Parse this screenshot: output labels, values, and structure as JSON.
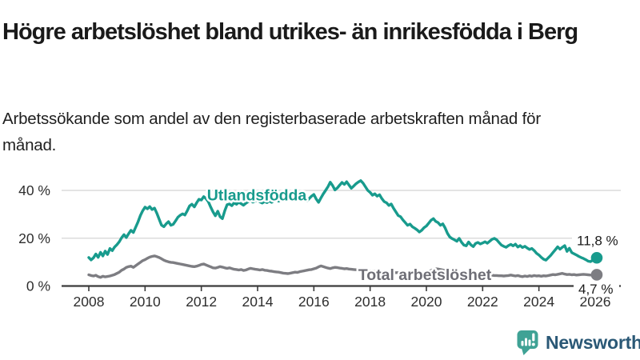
{
  "header": {
    "title": "Högre arbetslöshet bland utrikes- än inrikesfödda i Berg",
    "subtitle": "Arbetssökande som andel av den registerbaserade arbetskraften månad för månad."
  },
  "chart_data": {
    "type": "line",
    "title": "Högre arbetslöshet bland utrikes- än inrikesfödda i Berg",
    "x_axis": {
      "start_year": 2008,
      "end_year": 2026,
      "tick_years": [
        2008,
        2010,
        2012,
        2014,
        2016,
        2018,
        2020,
        2022,
        2024,
        2026
      ],
      "resolution": "monthly"
    },
    "y_axis": {
      "ylim": [
        0,
        48
      ],
      "ticks": [
        {
          "value": 0,
          "label": "0 %"
        },
        {
          "value": 20,
          "label": "20 %"
        },
        {
          "value": 40,
          "label": "40 %"
        }
      ],
      "grid": true
    },
    "colors": {
      "axis": "#3a3a3a",
      "grid": "#dcdcdc",
      "tick_text": "#2e2e2e",
      "end_label_text": "#1a1a1a"
    },
    "series": [
      {
        "name": "Utlandsfödda",
        "color": "#189b8d",
        "end_label": "11,8 %",
        "end_value": 11.8,
        "monthly_values": [
          11.9,
          10.9,
          11.8,
          13.4,
          12.0,
          14.1,
          12.6,
          14.6,
          13.2,
          15.7,
          14.8,
          16.3,
          17.3,
          18.5,
          20.2,
          21.5,
          20.3,
          21.9,
          23.3,
          22.4,
          24.6,
          26.8,
          29.5,
          31.5,
          33.0,
          32.3,
          33.2,
          32.0,
          32.6,
          30.5,
          28.0,
          25.5,
          24.8,
          26.0,
          26.9,
          25.4,
          25.8,
          27.2,
          28.8,
          29.6,
          30.2,
          29.7,
          31.5,
          33.5,
          34.2,
          33.1,
          34.8,
          36.3,
          36.0,
          37.4,
          36.6,
          35.2,
          33.0,
          31.0,
          29.4,
          31.3,
          29.0,
          28.2,
          31.5,
          34.0,
          34.3,
          33.6,
          34.8,
          34.2,
          35.0,
          34.4,
          33.8,
          34.6,
          35.3,
          35.8,
          35.1,
          35.6,
          35.9,
          35.2,
          34.7,
          35.4,
          34.9,
          35.6,
          35.0,
          35.7,
          36.2,
          35.5,
          36.0,
          36.5,
          36.9,
          36.2,
          36.7,
          37.3,
          36.8,
          37.4,
          38.0,
          37.2,
          36.4,
          35.6,
          36.6,
          37.6,
          38.3,
          36.4,
          35.0,
          36.8,
          38.5,
          40.0,
          41.5,
          43.4,
          42.0,
          40.2,
          41.0,
          42.2,
          43.3,
          42.5,
          43.6,
          42.2,
          40.9,
          41.8,
          42.8,
          43.5,
          44.1,
          43.0,
          41.5,
          40.0,
          39.2,
          38.0,
          38.6,
          37.6,
          38.2,
          36.6,
          35.3,
          34.8,
          33.7,
          34.3,
          32.5,
          31.0,
          29.5,
          29.0,
          27.6,
          26.5,
          25.4,
          25.9,
          24.8,
          24.2,
          23.5,
          22.6,
          23.3,
          24.4,
          25.1,
          26.3,
          27.5,
          28.2,
          27.0,
          26.5,
          25.4,
          26.0,
          24.3,
          22.0,
          20.5,
          19.8,
          19.3,
          18.7,
          19.9,
          18.3,
          17.1,
          16.8,
          18.4,
          17.2,
          16.5,
          17.8,
          18.2,
          17.6,
          18.0,
          18.5,
          17.9,
          18.7,
          19.5,
          19.9,
          19.3,
          18.2,
          17.1,
          16.6,
          16.2,
          16.9,
          17.4,
          16.8,
          17.5,
          16.3,
          16.9,
          16.1,
          16.6,
          15.9,
          15.3,
          15.7,
          14.8,
          13.7,
          13.0,
          12.0,
          11.2,
          10.8,
          11.8,
          12.8,
          14.0,
          15.2,
          16.4,
          15.4,
          16.2,
          16.9,
          14.5,
          15.8,
          14.0,
          13.5,
          13.0,
          12.4,
          11.9,
          11.5,
          11.0,
          10.4,
          10.2,
          10.8,
          11.8
        ]
      },
      {
        "name": "Total arbetslöshet",
        "color": "#7d7d82",
        "end_label": "4,7 %",
        "end_value": 4.7,
        "monthly_values": [
          4.7,
          4.4,
          4.2,
          4.5,
          3.9,
          3.6,
          4.1,
          3.8,
          4.0,
          4.2,
          4.5,
          4.8,
          5.3,
          5.8,
          6.6,
          7.1,
          7.8,
          8.1,
          8.3,
          7.8,
          8.5,
          9.2,
          9.9,
          10.6,
          11.0,
          11.6,
          12.1,
          12.4,
          12.6,
          12.3,
          11.9,
          11.4,
          10.8,
          10.4,
          10.1,
          9.9,
          9.8,
          9.6,
          9.4,
          9.2,
          9.0,
          8.8,
          8.6,
          8.4,
          8.2,
          8.1,
          8.3,
          8.6,
          9.0,
          9.2,
          8.8,
          8.4,
          8.0,
          7.6,
          7.5,
          7.8,
          8.1,
          7.9,
          7.6,
          7.4,
          7.6,
          7.3,
          7.0,
          6.9,
          6.7,
          6.9,
          6.5,
          6.7,
          7.1,
          7.4,
          7.2,
          7.0,
          6.9,
          6.7,
          6.9,
          6.6,
          6.5,
          6.3,
          6.2,
          6.0,
          5.9,
          5.8,
          5.6,
          5.4,
          5.3,
          5.2,
          5.4,
          5.6,
          5.8,
          5.7,
          6.0,
          6.2,
          6.4,
          6.6,
          6.8,
          6.9,
          7.2,
          7.5,
          8.0,
          8.4,
          8.1,
          7.8,
          7.5,
          7.3,
          7.6,
          7.8,
          7.7,
          7.5,
          7.4,
          7.2,
          7.3,
          7.1,
          7.0,
          6.9,
          6.8,
          6.7,
          6.6,
          6.5,
          6.4,
          6.3,
          6.3,
          6.2,
          6.1,
          6.0,
          5.9,
          5.9,
          5.8,
          5.8,
          5.7,
          5.7,
          5.6,
          5.6,
          5.6,
          5.5,
          5.5,
          5.4,
          5.4,
          5.3,
          5.3,
          5.4,
          5.4,
          5.5,
          5.6,
          5.7,
          5.8,
          6.0,
          6.5,
          7.0,
          7.2,
          7.1,
          6.9,
          6.7,
          6.5,
          6.3,
          6.1,
          6.0,
          5.9,
          5.8,
          5.7,
          5.6,
          5.5,
          5.4,
          5.3,
          5.2,
          5.1,
          5.0,
          4.9,
          4.8,
          4.8,
          4.7,
          4.6,
          4.5,
          4.5,
          4.4,
          4.4,
          4.3,
          4.3,
          4.2,
          4.3,
          4.4,
          4.6,
          4.4,
          4.2,
          4.4,
          4.1,
          3.9,
          4.2,
          4.0,
          4.3,
          4.1,
          4.4,
          4.2,
          4.3,
          4.1,
          4.3,
          4.2,
          4.4,
          4.6,
          4.8,
          4.7,
          4.9,
          5.1,
          5.3,
          5.0,
          4.8,
          4.9,
          4.7,
          4.8,
          4.6,
          4.7,
          4.8,
          4.9,
          4.8,
          4.7,
          4.6,
          4.6,
          4.7
        ]
      }
    ],
    "legend_position": "inline-labels"
  },
  "footer": {
    "brand": "Newsworthy",
    "brand_icon_color": "#3fa295",
    "brand_text_color": "#2a5876"
  }
}
